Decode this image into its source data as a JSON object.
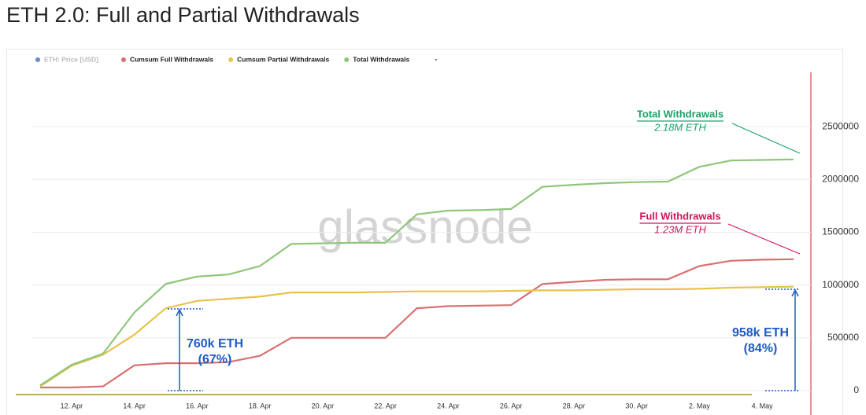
{
  "title": "ETH 2.0: Full and Partial Withdrawals",
  "chart_data": {
    "type": "line",
    "watermark": "glassnode",
    "inactive_legend": [
      {
        "name": "ETH: Price [USD]",
        "color": "#6f86d6"
      }
    ],
    "legend_trailing": "-",
    "categories": [
      null,
      "12. Apr",
      null,
      "14. Apr",
      null,
      "16. Apr",
      null,
      "18. Apr",
      null,
      "20. Apr",
      null,
      "22. Apr",
      null,
      "24. Apr",
      null,
      "26. Apr",
      null,
      "28. Apr",
      null,
      "30. Apr",
      null,
      "2. May",
      null,
      "4. May",
      null
    ],
    "series": [
      {
        "name": "Cumsum Full Withdrawals",
        "color": "#d9706f",
        "values": [
          30000,
          30000,
          40000,
          240000,
          260000,
          260000,
          270000,
          330000,
          500000,
          500000,
          500000,
          500000,
          780000,
          800000,
          805000,
          810000,
          1010000,
          1030000,
          1050000,
          1055000,
          1055000,
          1180000,
          1230000,
          1240000,
          1245000
        ]
      },
      {
        "name": "Cumsum Partial Withdrawals",
        "color": "#e8c24a",
        "values": [
          40000,
          235000,
          340000,
          530000,
          780000,
          850000,
          870000,
          890000,
          930000,
          930000,
          930000,
          935000,
          940000,
          940000,
          940000,
          945000,
          950000,
          950000,
          955000,
          960000,
          960000,
          965000,
          975000,
          980000,
          985000
        ]
      },
      {
        "name": "Total Withdrawals",
        "color": "#8fc67a",
        "values": [
          50000,
          245000,
          350000,
          740000,
          1010000,
          1080000,
          1100000,
          1180000,
          1390000,
          1395000,
          1400000,
          1400000,
          1670000,
          1705000,
          1710000,
          1720000,
          1930000,
          1950000,
          1965000,
          1975000,
          1980000,
          2120000,
          2180000,
          2185000,
          2190000
        ]
      }
    ],
    "ylim": [
      0,
      3000000
    ],
    "yticks": [
      0,
      500000,
      1000000,
      1500000,
      2000000,
      2500000
    ],
    "grid": true,
    "annotations": [
      {
        "text": "Total Withdrawals",
        "subtext": "2.18M ETH",
        "color": "#1ca36a"
      },
      {
        "text": "Full Withdrawals",
        "subtext": "1.23M ETH",
        "color": "#d0145a"
      },
      {
        "text": "760k ETH",
        "subtext": "(67%)",
        "color": "#1e5bc6"
      },
      {
        "text": "958k ETH",
        "subtext": "(84%)",
        "color": "#1e5bc6"
      }
    ]
  }
}
